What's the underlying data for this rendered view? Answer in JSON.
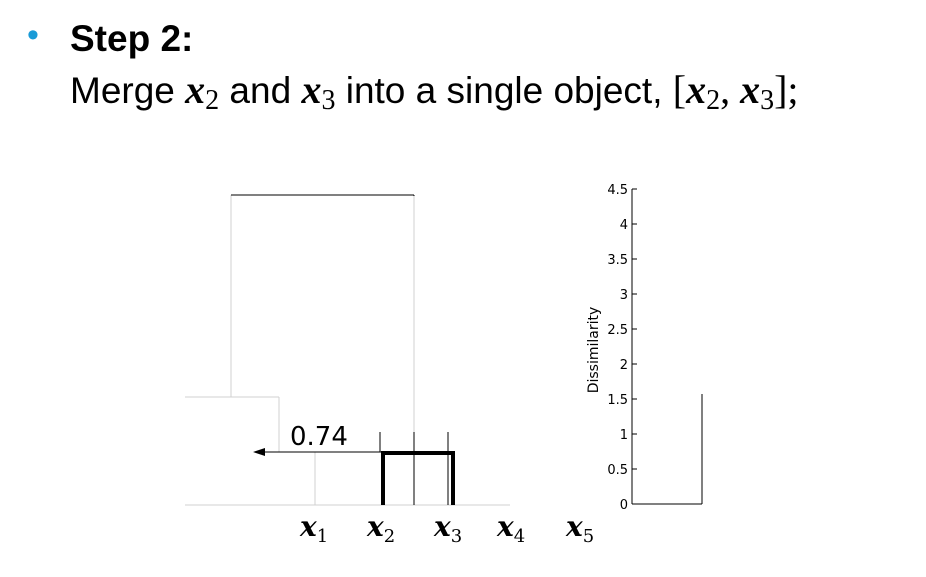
{
  "slide": {
    "bullet": "•",
    "title": "Step 2:",
    "desc": {
      "part1": "Merge ",
      "var_a": "x",
      "sub_a": "2",
      "and": " and ",
      "var_b": "x",
      "sub_b": "3",
      "part2": " into a single object, ",
      "open_bracket": "[",
      "var_c": "x",
      "sub_c": "2",
      "comma": ", ",
      "var_d": "x",
      "sub_d": "3",
      "close_bracket": "];"
    }
  },
  "diagram": {
    "merge_height_label": "0.74",
    "highlight_color": "#000000",
    "leaves": [
      {
        "var": "x",
        "sub": "1"
      },
      {
        "var": "x",
        "sub": "2"
      },
      {
        "var": "x",
        "sub": "3"
      },
      {
        "var": "x",
        "sub": "4"
      },
      {
        "var": "x",
        "sub": "5"
      }
    ],
    "axis": {
      "label": "Dissimilarity",
      "ticks": [
        "0",
        "0.5",
        "1",
        "1.5",
        "2",
        "2.5",
        "3",
        "3.5",
        "4",
        "4.5"
      ]
    }
  }
}
